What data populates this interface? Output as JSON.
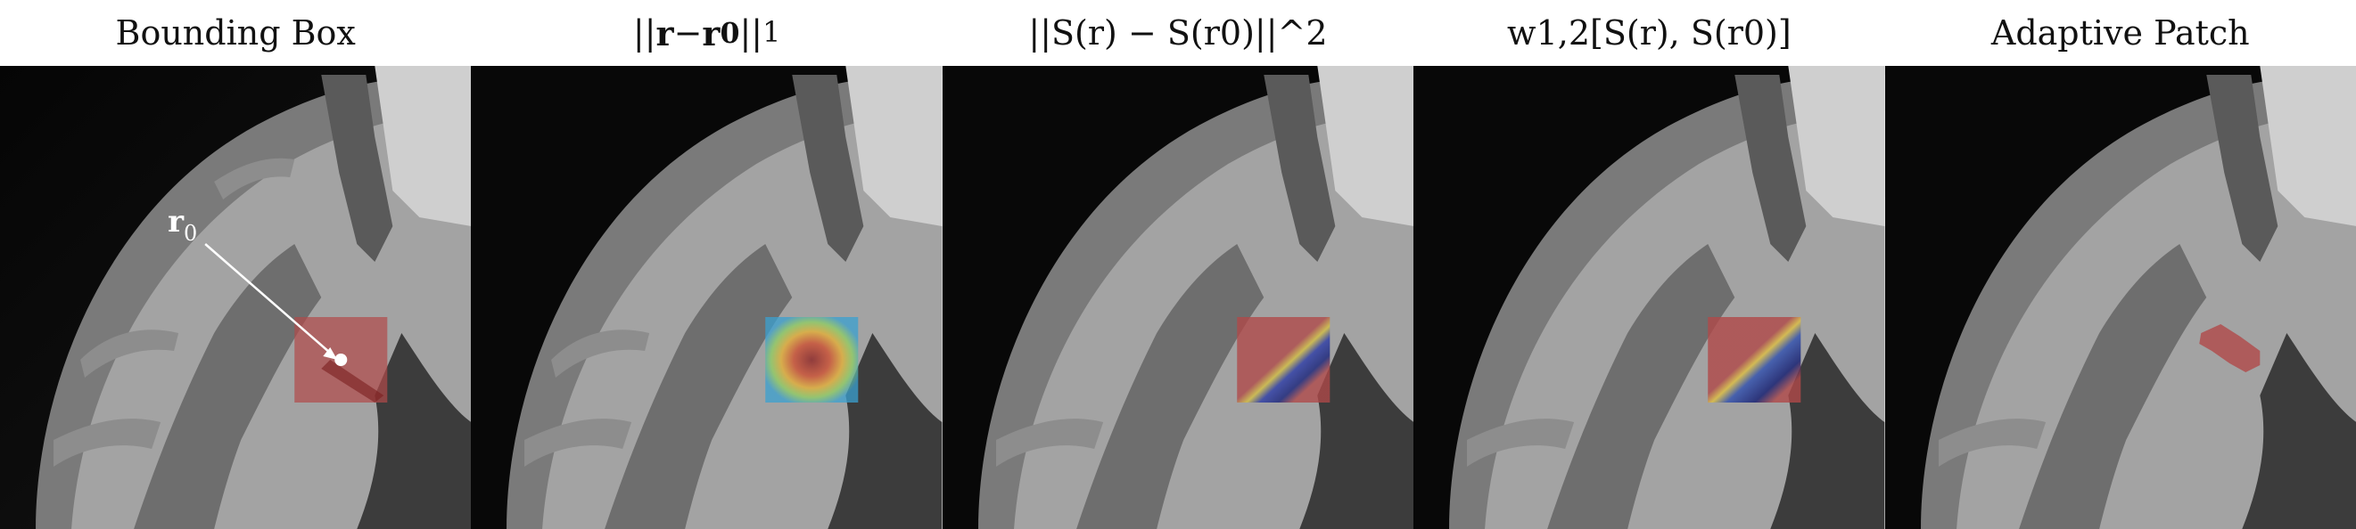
{
  "figure": {
    "panels": [
      {
        "id": "bounding-box",
        "title": "Bounding Box",
        "overlay": "bounding-box",
        "annotation": "r0"
      },
      {
        "id": "distance",
        "title_parts": [
          "||",
          "r",
          " − ",
          "r",
          "0",
          "||",
          "1"
        ],
        "title_plain": "||r − r0||^1",
        "overlay": "distance-heat"
      },
      {
        "id": "intensity-diff",
        "title_plain": "||S(r) − S(r0)||^2",
        "overlay": "intensity-heat"
      },
      {
        "id": "weight",
        "title_plain": "w1,2[S(r), S(r0)]",
        "overlay": "weight-heat"
      },
      {
        "id": "adaptive-patch",
        "title": "Adaptive Patch",
        "overlay": "adaptive-patch"
      }
    ],
    "annotation_label": "r",
    "annotation_sub": "0",
    "colors": {
      "overlay_red": "#b04848",
      "tissue_gray": "#a8a8a8",
      "background": "#000000",
      "heat_low": "#1c2fa0",
      "heat_high": "#8a1a1a"
    }
  }
}
